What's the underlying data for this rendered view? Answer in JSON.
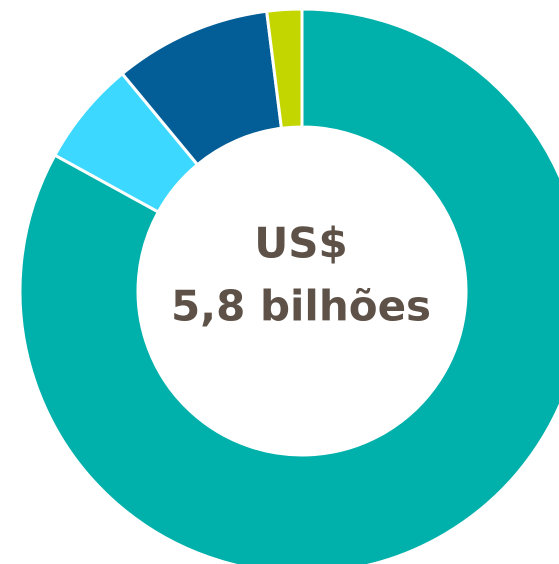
{
  "chart_data": {
    "type": "donut",
    "center_label": [
      "US$",
      "5,8 bilhões"
    ],
    "categories": [
      null,
      null,
      null,
      null
    ],
    "values": [
      83,
      6,
      9,
      2
    ],
    "colors": [
      "#00b0aa",
      "#3dd8ff",
      "#035e98",
      "#c3d600"
    ]
  }
}
